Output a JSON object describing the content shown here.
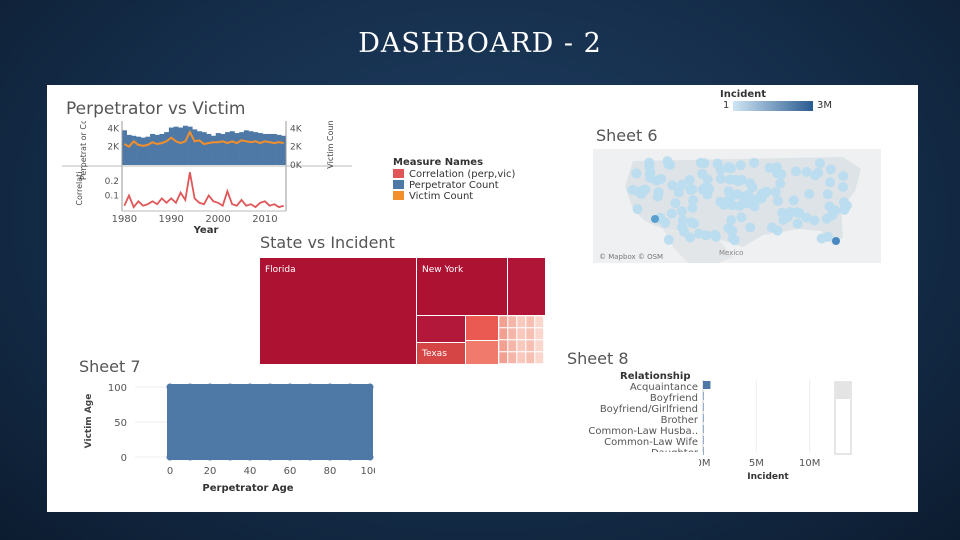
{
  "slide": {
    "title": "DASHBOARD - 2"
  },
  "colors": {
    "bar_blue": "#4e79a7",
    "line_orange": "#f28e2b",
    "line_red": "#e15759",
    "treemap_dark": "#ad1233",
    "map_light": "#b9dcef"
  },
  "perp_victim": {
    "title": "Perpetrator vs Victim",
    "ylabel_top_left": "Perpetrat or Count",
    "ylabel_top_right": "Victim Count",
    "ylabel_bottom": "Correlati..",
    "xlabel": "Year"
  },
  "measure_legend": {
    "title": "Measure Names",
    "items": [
      {
        "label": "Correlation (perp,vic)",
        "color": "#e15759"
      },
      {
        "label": "Perpetrator Count",
        "color": "#4e79a7"
      },
      {
        "label": "Victim Count",
        "color": "#f28e2b"
      }
    ]
  },
  "incident_legend": {
    "title": "Incident",
    "min_label": "1",
    "max_label": "3M"
  },
  "sheet6": {
    "title": "Sheet 6",
    "credit": "© Mapbox © OSM",
    "place_label": "Mexico"
  },
  "treemap": {
    "title": "State vs Incident",
    "labels": [
      "Florida",
      "New York",
      "Texas"
    ]
  },
  "sheet7": {
    "title": "Sheet 7",
    "xlabel": "Perpetrator Age",
    "ylabel": "Victim Age"
  },
  "sheet8": {
    "title": "Sheet 8",
    "header": "Relationship",
    "relationships": [
      "Acquaintance",
      "Boyfriend",
      "Boyfriend/Girlfriend",
      "Brother",
      "Common-Law Husba..",
      "Common-Law Wife",
      "Daughter"
    ],
    "xlabel": "Incident"
  },
  "chart_data": [
    {
      "type": "bar",
      "title": "Perpetrator vs Victim",
      "xlabel": "Year",
      "ylabel": "Perpetrator Count",
      "x_ticks": [
        1980,
        1990,
        2000,
        2010
      ],
      "y_ticks": [
        "2K",
        "4K"
      ],
      "y2_ticks": [
        "0K",
        "2K",
        "4K"
      ],
      "ylim": [
        0,
        4600
      ],
      "x": [
        1980,
        1981,
        1982,
        1983,
        1984,
        1985,
        1986,
        1987,
        1988,
        1989,
        1990,
        1991,
        1992,
        1993,
        1994,
        1995,
        1996,
        1997,
        1998,
        1999,
        2000,
        2001,
        2002,
        2003,
        2004,
        2005,
        2006,
        2007,
        2008,
        2009,
        2010,
        2011,
        2012,
        2013,
        2014
      ],
      "series": [
        {
          "name": "Perpetrator Count",
          "values": [
            3800,
            3300,
            3200,
            3100,
            3000,
            3100,
            3400,
            3300,
            3400,
            3600,
            4100,
            4200,
            4100,
            4300,
            4200,
            3900,
            3700,
            3600,
            3400,
            3200,
            3500,
            3400,
            3600,
            3700,
            3500,
            3600,
            3800,
            3700,
            3600,
            3500,
            3400,
            3400,
            3400,
            3300,
            3200
          ]
        },
        {
          "name": "Victim Count",
          "values": [
            2300,
            2000,
            2600,
            2200,
            2100,
            2200,
            2500,
            2300,
            2400,
            2600,
            3000,
            2600,
            2400,
            2600,
            3600,
            2600,
            2700,
            2300,
            2400,
            2500,
            2500,
            2600,
            2400,
            2600,
            2400,
            2700,
            2600,
            2500,
            2600,
            2400,
            2600,
            2500,
            2400,
            2500,
            2400
          ]
        }
      ]
    },
    {
      "type": "line",
      "title": "",
      "ylabel": "Correlation",
      "y_ticks": [
        0.1,
        0.2
      ],
      "ylim": [
        0,
        0.29
      ],
      "x": [
        1980,
        1981,
        1982,
        1983,
        1984,
        1985,
        1986,
        1987,
        1988,
        1989,
        1990,
        1991,
        1992,
        1993,
        1994,
        1995,
        1996,
        1997,
        1998,
        1999,
        2000,
        2001,
        2002,
        2003,
        2004,
        2005,
        2006,
        2007,
        2008,
        2009,
        2010,
        2011,
        2012,
        2013,
        2014
      ],
      "series": [
        {
          "name": "Correlation (perp,vic)",
          "values": [
            0.03,
            0.1,
            0.02,
            0.06,
            0.03,
            0.04,
            0.06,
            0.04,
            0.08,
            0.05,
            0.08,
            0.05,
            0.12,
            0.07,
            0.26,
            0.08,
            0.05,
            0.04,
            0.1,
            0.06,
            0.05,
            0.03,
            0.13,
            0.04,
            0.03,
            0.07,
            0.03,
            0.04,
            0.02,
            0.05,
            0.06,
            0.03,
            0.04,
            0.02,
            0.03
          ]
        }
      ]
    },
    {
      "type": "heatmap",
      "title": "Sheet 6",
      "legend": "Incident",
      "range": [
        "1",
        "3M"
      ]
    },
    {
      "type": "heatmap",
      "title": "State vs Incident",
      "categories": [
        "Florida",
        "New York",
        "Texas"
      ]
    },
    {
      "type": "scatter",
      "title": "Sheet 7",
      "xlabel": "Perpetrator Age",
      "ylabel": "Victim Age",
      "x_ticks": [
        0,
        20,
        40,
        60,
        80,
        100
      ],
      "y_ticks": [
        0,
        50,
        100
      ],
      "xlim": [
        0,
        100
      ],
      "ylim": [
        0,
        100
      ]
    },
    {
      "type": "bar",
      "title": "Sheet 8",
      "orientation": "horizontal",
      "categories": [
        "Acquaintance",
        "Boyfriend",
        "Boyfriend/Girlfriend",
        "Brother",
        "Common-Law Husba..",
        "Common-Law Wife",
        "Daughter"
      ],
      "x_ticks": [
        "0M",
        "5M",
        "10M"
      ],
      "xlabel": "Incident",
      "xlim": [
        0,
        12
      ],
      "values": [
        0.7,
        0.05,
        0.02,
        0.05,
        0.01,
        0.01,
        0.05
      ]
    }
  ]
}
